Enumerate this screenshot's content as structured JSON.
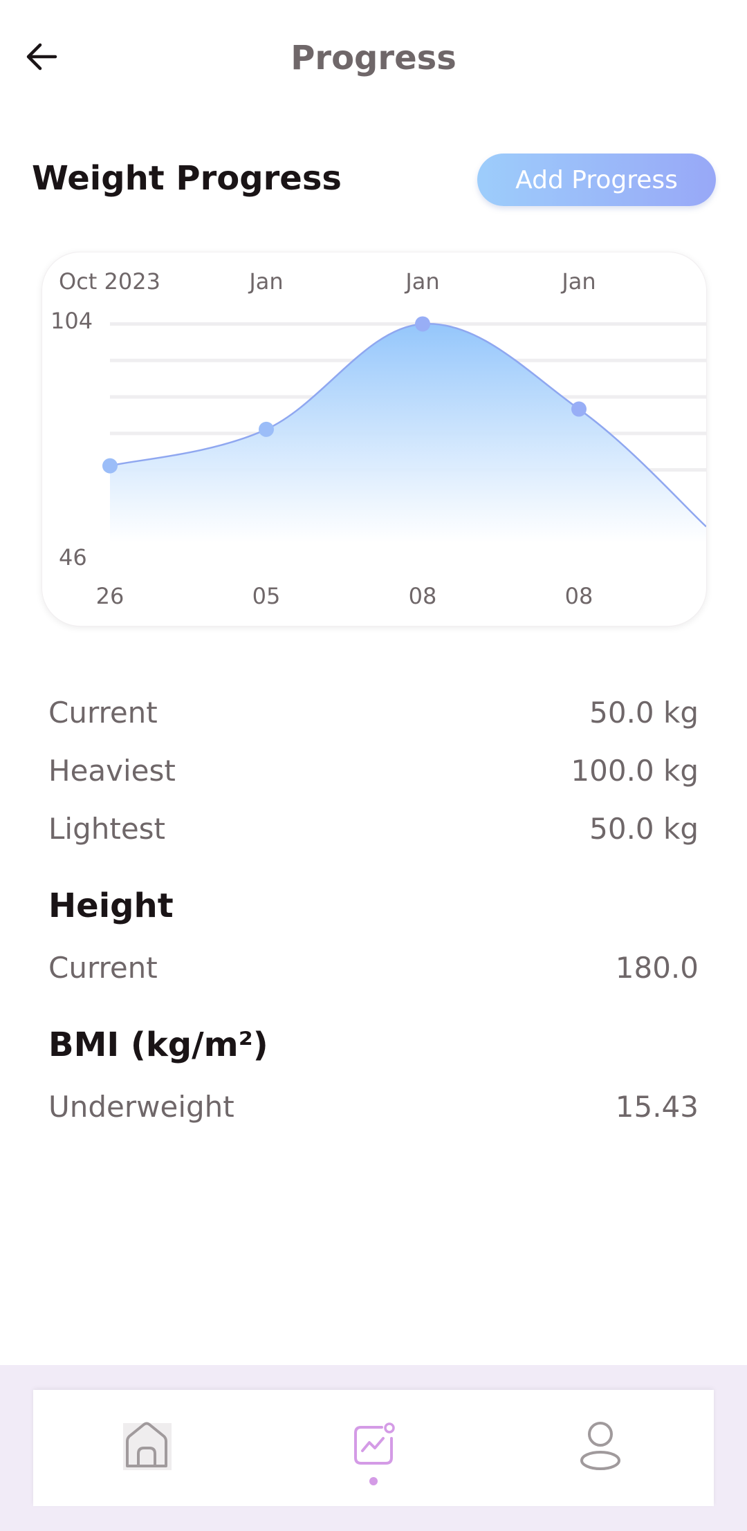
{
  "header": {
    "title": "Progress",
    "back_icon": "arrow-left-icon"
  },
  "weight_section": {
    "title": "Weight Progress",
    "add_button_label": "Add Progress"
  },
  "chart_data": {
    "type": "area",
    "x_top_labels": [
      "Oct 2023",
      "Jan",
      "Jan",
      "Jan"
    ],
    "x_bottom_labels": [
      "26",
      "05",
      "08",
      "08"
    ],
    "y_tick_labels": [
      "104",
      "46"
    ],
    "ylim": [
      46,
      104
    ],
    "points": [
      {
        "x": "26 Oct 2023",
        "y": 65
      },
      {
        "x": "05 Jan",
        "y": 74
      },
      {
        "x": "08 Jan",
        "y": 100
      },
      {
        "x": "08 Jan",
        "y": 79
      },
      {
        "x": "",
        "y": 50
      }
    ],
    "grid": true,
    "colors": {
      "line": "#8fa7f0",
      "fill_top": "#9ccbfb",
      "point": "#9bbdf8",
      "grid": "#efeef0"
    }
  },
  "weight_stats": [
    {
      "label": "Current",
      "value": "50.0 kg"
    },
    {
      "label": "Heaviest",
      "value": "100.0 kg"
    },
    {
      "label": "Lightest",
      "value": "50.0 kg"
    }
  ],
  "height_section": {
    "title": "Height",
    "rows": [
      {
        "label": "Current",
        "value": "180.0"
      }
    ]
  },
  "bmi_section": {
    "title": "BMI (kg/m²)",
    "rows": [
      {
        "label": "Underweight",
        "value": "15.43"
      }
    ]
  },
  "bottom_nav": {
    "items": [
      {
        "icon": "home-icon",
        "active": false
      },
      {
        "icon": "progress-chart-icon",
        "active": true
      },
      {
        "icon": "profile-icon",
        "active": false
      }
    ],
    "accent": "#d49be6",
    "inactive_color": "#a09a9c"
  }
}
